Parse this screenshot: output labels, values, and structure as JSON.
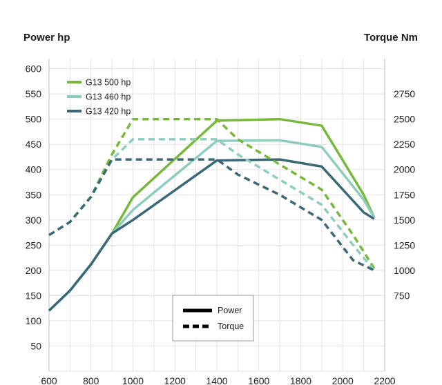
{
  "chart_data": {
    "type": "line",
    "ylabel_left": "Power hp",
    "ylabel_right": "Torque Nm",
    "x_ticks": [
      600,
      800,
      1000,
      1200,
      1400,
      1600,
      1800,
      2000,
      2200
    ],
    "xlim": [
      600,
      2200
    ],
    "ylim_left": [
      0,
      620
    ],
    "y_ticks_left": [
      50,
      100,
      150,
      200,
      250,
      300,
      350,
      400,
      450,
      500,
      550,
      600
    ],
    "ylim_right": [
      0,
      3100
    ],
    "y_ticks_right": [
      750,
      1000,
      1250,
      1500,
      1750,
      2000,
      2250,
      2500,
      2750
    ],
    "grid": true,
    "legend_position": "top-left",
    "style_key": {
      "power_label": "Power",
      "torque_label": "Torque"
    },
    "series": [
      {
        "name": "G13 500 hp",
        "color": "#78b83c",
        "axis": "left",
        "metric": "power",
        "x": [
          600,
          700,
          800,
          900,
          1000,
          1400,
          1700,
          1900,
          2100,
          2150
        ],
        "y": [
          120,
          160,
          212,
          273,
          345,
          497,
          500,
          487,
          350,
          305
        ]
      },
      {
        "name": "G13 460 hp",
        "color": "#8dcdbd",
        "axis": "left",
        "metric": "power",
        "x": [
          600,
          700,
          800,
          900,
          1000,
          1400,
          1700,
          1900,
          2100,
          2150
        ],
        "y": [
          120,
          160,
          212,
          273,
          320,
          457,
          458,
          445,
          340,
          305
        ]
      },
      {
        "name": "G13 420 hp",
        "color": "#3b6876",
        "axis": "left",
        "metric": "power",
        "x": [
          600,
          700,
          800,
          900,
          1000,
          1400,
          1700,
          1900,
          2100,
          2150
        ],
        "y": [
          120,
          160,
          212,
          273,
          300,
          418,
          420,
          406,
          315,
          302
        ]
      },
      {
        "name": "G13 500 hp",
        "color": "#78b83c",
        "axis": "right",
        "metric": "torque",
        "x": [
          600,
          700,
          800,
          900,
          1000,
          1400,
          1500,
          1700,
          1900,
          2050,
          2150
        ],
        "y": [
          1350,
          1480,
          1730,
          2150,
          2500,
          2500,
          2300,
          2050,
          1800,
          1350,
          1020
        ]
      },
      {
        "name": "G13 460 hp",
        "color": "#8dcdbd",
        "axis": "right",
        "metric": "torque",
        "x": [
          600,
          700,
          800,
          900,
          1000,
          1400,
          1500,
          1700,
          1900,
          2050,
          2150
        ],
        "y": [
          1350,
          1480,
          1730,
          2100,
          2300,
          2300,
          2150,
          1900,
          1650,
          1250,
          1000
        ]
      },
      {
        "name": "G13 420 hp",
        "color": "#3b6876",
        "axis": "right",
        "metric": "torque",
        "x": [
          600,
          700,
          800,
          900,
          1000,
          1400,
          1500,
          1700,
          1900,
          2050,
          2150
        ],
        "y": [
          1350,
          1480,
          1730,
          2100,
          2100,
          2100,
          1950,
          1750,
          1500,
          1100,
          1000
        ]
      }
    ]
  }
}
